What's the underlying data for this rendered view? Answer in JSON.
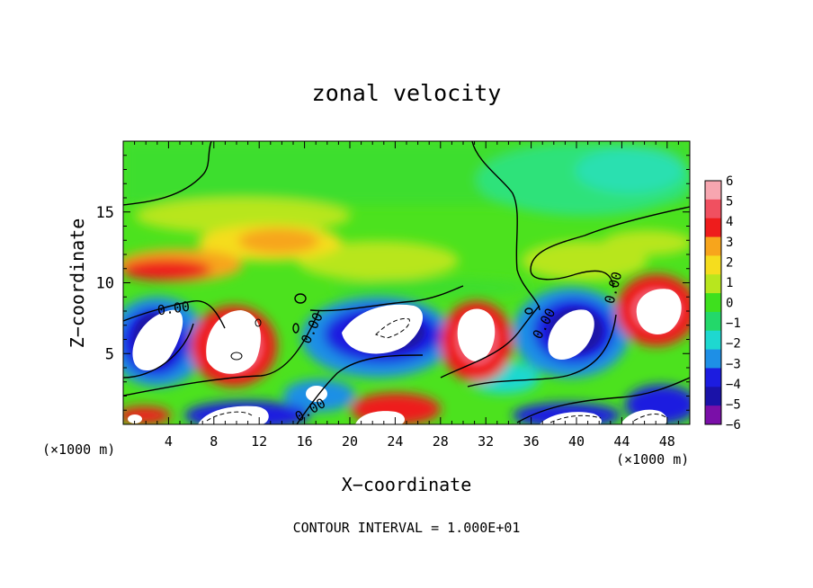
{
  "chart_data": {
    "type": "heatmap",
    "title": "zonal velocity",
    "xlabel": "X−coordinate",
    "ylabel": "Z−coordinate",
    "x_unit_left": "(×1000 m)",
    "x_unit_right": "(×1000 m)",
    "xlim": [
      0,
      50
    ],
    "ylim": [
      0,
      20
    ],
    "x_ticks": [
      "4",
      "8",
      "12",
      "16",
      "20",
      "24",
      "28",
      "32",
      "36",
      "40",
      "44",
      "48"
    ],
    "y_ticks": [
      "5",
      "10",
      "15"
    ],
    "footer": "CONTOUR INTERVAL = 1.000E+01",
    "colorbar": {
      "labels": [
        "6",
        "5",
        "4",
        "3",
        "2",
        "1",
        "0",
        "−1",
        "−2",
        "−3",
        "−4",
        "−5",
        "−6"
      ],
      "range": [
        -6,
        6
      ],
      "colors": [
        "#f7a6b0",
        "#f05060",
        "#ee1c1c",
        "#f7a51c",
        "#f5dd1e",
        "#b8e61e",
        "#3ee01e",
        "#23d86a",
        "#1ed8d0",
        "#1e8fe6",
        "#1c1ce0",
        "#1a12a8",
        "#7a0fa8"
      ]
    },
    "contour_labels": [
      "0.00",
      "0.00",
      "0.00",
      "0.00",
      "0.00",
      "0.00"
    ],
    "background_color": "#4ce21e"
  }
}
